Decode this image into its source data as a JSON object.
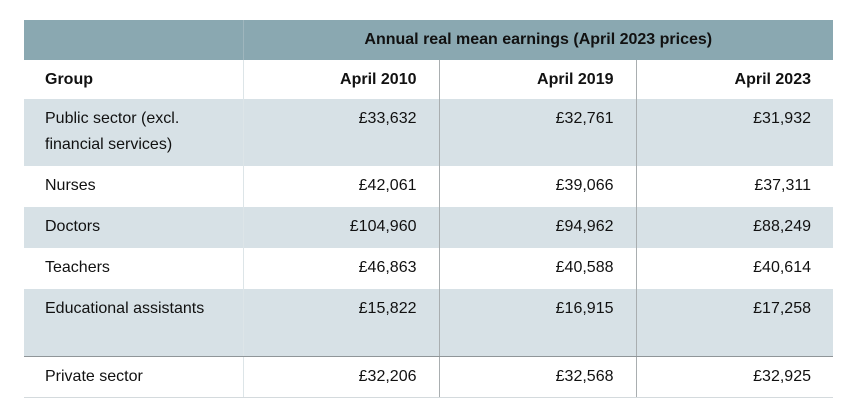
{
  "table": {
    "super_header": "Annual real mean earnings (April 2023 prices)",
    "columns": {
      "group": "Group",
      "years": [
        "April 2010",
        "April 2019",
        "April 2023"
      ]
    },
    "rows": [
      {
        "group": "Public sector (excl. financial services)",
        "values": [
          "£33,632",
          "£32,761",
          "£31,932"
        ]
      },
      {
        "group": "Nurses",
        "values": [
          "£42,061",
          "£39,066",
          "£37,311"
        ]
      },
      {
        "group": "Doctors",
        "values": [
          "£104,960",
          "£94,962",
          "£88,249"
        ]
      },
      {
        "group": "Teachers",
        "values": [
          "£46,863",
          "£40,588",
          "£40,614"
        ]
      },
      {
        "group": "Educational assistants",
        "values": [
          "£15,822",
          "£16,915",
          "£17,258"
        ]
      },
      {
        "group": "Private sector",
        "values": [
          "£32,206",
          "£32,568",
          "£32,925"
        ]
      }
    ]
  },
  "colors": {
    "header_band": "#8aa8b1",
    "shaded_row": "#d7e1e6",
    "plain_row": "#ffffff"
  }
}
